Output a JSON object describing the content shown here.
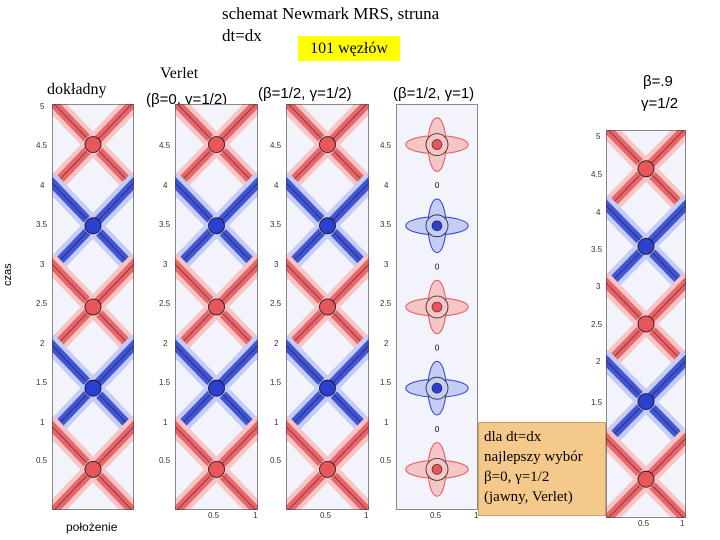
{
  "header": {
    "title": "schemat Newmark MRS, struna",
    "subtitle": "dt=dx",
    "badge": "101 węzłów"
  },
  "axes": {
    "ylabel": "czas",
    "xlabel": "położenie",
    "time_ticks": [
      "0.5",
      "1",
      "1.5",
      "2",
      "2.5",
      "3",
      "3.5",
      "4",
      "4.5",
      "5"
    ],
    "pos_ticks": [
      "0.5",
      "1"
    ]
  },
  "panels": [
    {
      "id": "exact",
      "label_line1": "dokładny",
      "label_line2": ""
    },
    {
      "id": "verlet",
      "label_line1": "Verlet",
      "label_line2": "(β=0, γ=1/2)"
    },
    {
      "id": "b12g12",
      "label_line1": "",
      "label_line2": "(β=1/2, γ=1/2)"
    },
    {
      "id": "b12g1",
      "label_line1": "",
      "label_line2": "(β=1/2, γ=1)"
    },
    {
      "id": "b09g12",
      "label_line1": "β=.9",
      "label_line2": "γ=1/2"
    }
  ],
  "note": {
    "line1": "dla dt=dx",
    "line2": "najlepszy wybór",
    "line3": "β=0, γ=1/2",
    "line4": "(jawny, Verlet)"
  },
  "colors": {
    "positive": "#e8555a",
    "positive_light": "#f6c5c5",
    "negative": "#2b3fd0",
    "negative_light": "#c5cdf4",
    "background": "#f2f3fb",
    "badge": "#ffff00",
    "note": "#f5c98c"
  }
}
